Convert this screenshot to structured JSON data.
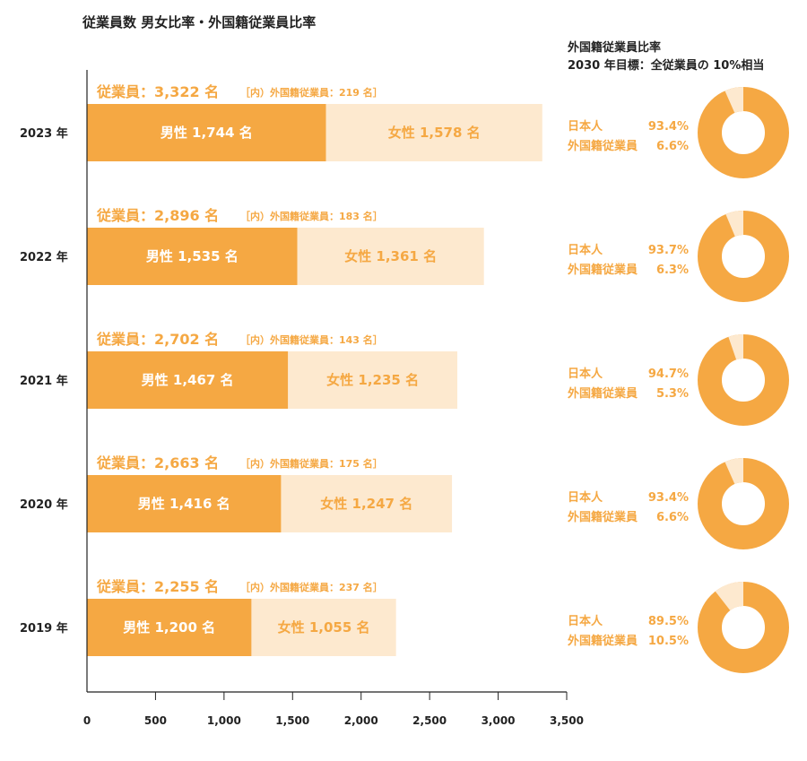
{
  "colors": {
    "male": "#f5a843",
    "female": "#fde9cf",
    "accent": "#f5a843",
    "ring_minor": "#fde9cf",
    "text": "#222222"
  },
  "chart_data": {
    "type": "bar",
    "orientation": "horizontal",
    "stacked": true,
    "title": "従業員数 男女比率・外国籍従業員比率",
    "xlim": [
      0,
      3500
    ],
    "x_ticks": [
      "0",
      "500",
      "1,000",
      "1,500",
      "2,000",
      "2,500",
      "3,000",
      "3,500"
    ],
    "x_tick_values": [
      0,
      500,
      1000,
      1500,
      2000,
      2500,
      3000,
      3500
    ],
    "categories": [
      "2023 年",
      "2022 年",
      "2021 年",
      "2020 年",
      "2019 年"
    ],
    "series": [
      {
        "name": "男性",
        "values": [
          1744,
          1535,
          1467,
          1416,
          1200
        ]
      },
      {
        "name": "女性",
        "values": [
          1578,
          1361,
          1235,
          1247,
          1055
        ]
      }
    ],
    "rows": [
      {
        "year": "2023 年",
        "total_label": "従業員：3,322 名",
        "foreign_label": "［内）外国籍従業員：219 名］",
        "male_label": "男性 1,744 名",
        "female_label": "女性 1,578 名",
        "male": 1744,
        "female": 1578,
        "jp_label": "日本人",
        "jp_pct_label": "93.4%",
        "fg_label": "外国籍従業員",
        "fg_pct_label": "6.6%",
        "foreign_pct": 6.6
      },
      {
        "year": "2022 年",
        "total_label": "従業員：2,896 名",
        "foreign_label": "［内）外国籍従業員：183 名］",
        "male_label": "男性 1,535 名",
        "female_label": "女性 1,361 名",
        "male": 1535,
        "female": 1361,
        "jp_label": "日本人",
        "jp_pct_label": "93.7%",
        "fg_label": "外国籍従業員",
        "fg_pct_label": "6.3%",
        "foreign_pct": 6.3
      },
      {
        "year": "2021 年",
        "total_label": "従業員：2,702 名",
        "foreign_label": "［内）外国籍従業員：143 名］",
        "male_label": "男性 1,467 名",
        "female_label": "女性 1,235 名",
        "male": 1467,
        "female": 1235,
        "jp_label": "日本人",
        "jp_pct_label": "94.7%",
        "fg_label": "外国籍従業員",
        "fg_pct_label": "5.3%",
        "foreign_pct": 5.3
      },
      {
        "year": "2020 年",
        "total_label": "従業員：2,663 名",
        "foreign_label": "［内）外国籍従業員：175 名］",
        "male_label": "男性 1,416 名",
        "female_label": "女性 1,247 名",
        "male": 1416,
        "female": 1247,
        "jp_label": "日本人",
        "jp_pct_label": "93.4%",
        "fg_label": "外国籍従業員",
        "fg_pct_label": "6.6%",
        "foreign_pct": 6.6
      },
      {
        "year": "2019 年",
        "total_label": "従業員：2,255 名",
        "foreign_label": "［内）外国籍従業員：237 名］",
        "male_label": "男性 1,200 名",
        "female_label": "女性 1,055 名",
        "male": 1200,
        "female": 1055,
        "jp_label": "日本人",
        "jp_pct_label": "89.5%",
        "fg_label": "外国籍従業員",
        "fg_pct_label": "10.5%",
        "foreign_pct": 10.5
      }
    ],
    "donut_title": "外国籍従業員比率",
    "donut_subtitle": "2030 年目標：全従業員の 10%相当"
  }
}
